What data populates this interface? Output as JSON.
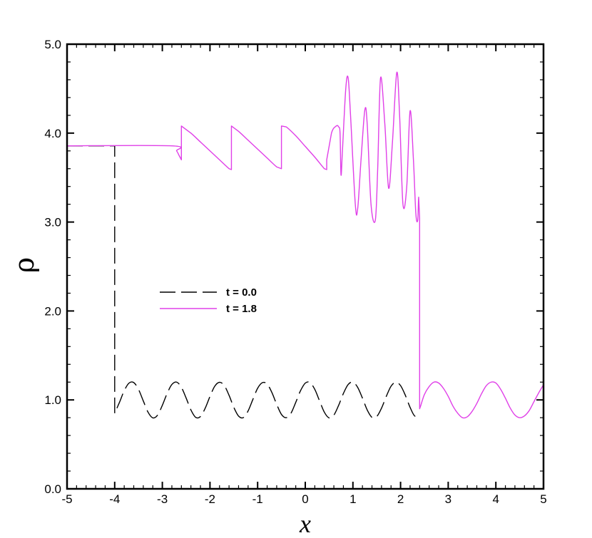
{
  "chart_data": {
    "type": "line",
    "xlabel": "x",
    "ylabel": "ρ",
    "xlim": [
      -5,
      5
    ],
    "ylim": [
      0,
      5
    ],
    "x_ticks": [
      -5,
      -4,
      -3,
      -2,
      -1,
      0,
      1,
      2,
      3,
      4,
      5
    ],
    "x_tick_labels": [
      "-5",
      "-4",
      "-3",
      "-2",
      "-1",
      "0",
      "1",
      "2",
      "3",
      "4",
      "5"
    ],
    "y_ticks": [
      0,
      1,
      2,
      3,
      4,
      5
    ],
    "y_tick_labels": [
      "0.0",
      "1.0",
      "2.0",
      "3.0",
      "4.0",
      "5.0"
    ],
    "grid": false,
    "legend_position": "center-left",
    "series": [
      {
        "name": "t = 0.0",
        "color": "#000000",
        "dash": "dashed",
        "x": [
          -5,
          -4,
          -4,
          -3.9,
          -3.8,
          -3.7,
          -3.6,
          -3.5,
          -3.4,
          -3.3,
          -3.2,
          -3.1,
          -3.0,
          -2.9,
          -2.8,
          -2.7,
          -2.6,
          -2.5,
          -2.4,
          -2.3,
          -2.2,
          -2.1,
          -2.0,
          -1.9,
          -1.8,
          -1.7,
          -1.6,
          -1.5,
          -1.4,
          -1.3,
          -1.2,
          -1.1,
          -1.0,
          -0.9,
          -0.8,
          -0.7,
          -0.6,
          -0.5,
          -0.4,
          -0.3,
          -0.2,
          -0.1,
          0.0,
          0.1,
          0.2,
          0.3,
          0.4,
          0.5,
          0.6,
          0.7,
          0.8,
          0.9,
          1.0,
          1.1,
          1.2,
          1.3,
          1.4,
          1.5,
          1.6,
          1.7,
          1.8,
          1.9,
          2.0,
          2.1,
          2.2,
          2.3,
          2.4
        ],
        "y": [
          3.857,
          3.857,
          0.849,
          0.972,
          1.103,
          1.189,
          1.195,
          1.118,
          0.989,
          0.862,
          0.798,
          0.829,
          0.939,
          1.072,
          1.173,
          1.2,
          1.141,
          1.02,
          0.887,
          0.804,
          0.813,
          0.907,
          1.039,
          1.154,
          1.198,
          1.161,
          1.052,
          0.916,
          0.818,
          0.801,
          0.876,
          1.005,
          1.131,
          1.194,
          1.178,
          1.082,
          0.95,
          0.837,
          0.8,
          0.85,
          0.972,
          1.103,
          1.189,
          1.195,
          1.118,
          0.989,
          0.862,
          0.798,
          0.829,
          0.939,
          1.072,
          1.173,
          1.2,
          1.141,
          1.02,
          0.887,
          0.804,
          0.813,
          0.907,
          1.039,
          1.154,
          1.198,
          1.161,
          1.052,
          0.916,
          0.818,
          0.85
        ]
      },
      {
        "name": "t = 1.8",
        "color": "#e040e8",
        "dash": "solid",
        "x": [
          -5,
          -2.8,
          -2.7,
          -2.65,
          -2.6,
          -2.6,
          -2.4,
          -2.2,
          -2.0,
          -1.8,
          -1.6,
          -1.55,
          -1.55,
          -1.4,
          -1.2,
          -1.0,
          -0.8,
          -0.6,
          -0.5,
          -0.5,
          -0.4,
          -0.2,
          0.0,
          0.2,
          0.4,
          0.45,
          0.45,
          0.55,
          0.65,
          0.7,
          0.73,
          0.75,
          0.78,
          0.85,
          0.9,
          0.95,
          1.05,
          1.1,
          1.17,
          1.25,
          1.3,
          1.38,
          1.47,
          1.52,
          1.58,
          1.67,
          1.75,
          1.83,
          1.92,
          1.98,
          2.05,
          2.13,
          2.2,
          2.27,
          2.32,
          2.36,
          2.38,
          2.4,
          2.4,
          2.42,
          2.5,
          2.6,
          2.7,
          2.8,
          2.9,
          3.0,
          3.1,
          3.2,
          3.3,
          3.4,
          3.5,
          3.6,
          3.7,
          3.8,
          3.9,
          4.0,
          4.1,
          4.2,
          4.3,
          4.4,
          4.5,
          4.6,
          4.7,
          4.8,
          4.9,
          5.0
        ],
        "y": [
          3.857,
          3.857,
          3.8,
          3.75,
          3.7,
          4.08,
          4.0,
          3.9,
          3.8,
          3.7,
          3.6,
          3.59,
          4.08,
          4.02,
          3.92,
          3.82,
          3.72,
          3.62,
          3.6,
          4.08,
          4.07,
          3.97,
          3.85,
          3.73,
          3.6,
          3.59,
          3.7,
          4.0,
          4.08,
          4.07,
          4.0,
          3.53,
          3.8,
          4.5,
          4.62,
          4.2,
          3.2,
          3.15,
          3.7,
          4.26,
          4.1,
          3.2,
          3.02,
          3.6,
          4.62,
          4.1,
          3.38,
          3.9,
          4.68,
          4.2,
          3.2,
          3.4,
          4.25,
          3.7,
          3.1,
          3.02,
          3.28,
          3.05,
          0.9,
          0.93,
          1.06,
          1.15,
          1.2,
          1.19,
          1.13,
          1.04,
          0.93,
          0.85,
          0.8,
          0.81,
          0.87,
          0.96,
          1.07,
          1.16,
          1.2,
          1.19,
          1.12,
          1.02,
          0.91,
          0.83,
          0.8,
          0.82,
          0.88,
          0.98,
          1.08,
          1.17
        ]
      }
    ]
  }
}
